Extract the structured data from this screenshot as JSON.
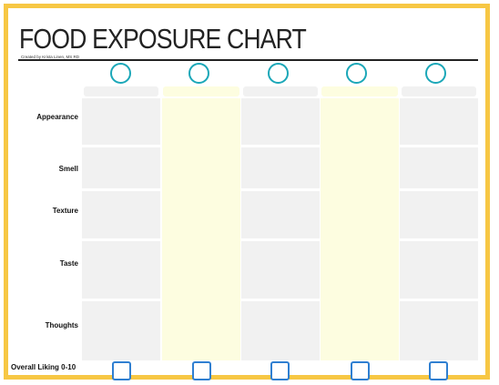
{
  "title": "FOOD EXPOSURE CHART",
  "credit": "Created by Krista Linen, MS RD",
  "rows": [
    {
      "label": "Appearance"
    },
    {
      "label": "Smell"
    },
    {
      "label": "Texture"
    },
    {
      "label": "Taste"
    },
    {
      "label": "Thoughts"
    }
  ],
  "overall_label": "Overall Liking 0-10",
  "colors": {
    "border": "#f7c744",
    "circle": "#1ba7b8",
    "checkbox": "#2f7fd1",
    "grey_column": "#f1f1f1",
    "yellow_column": "#fdfde0"
  }
}
